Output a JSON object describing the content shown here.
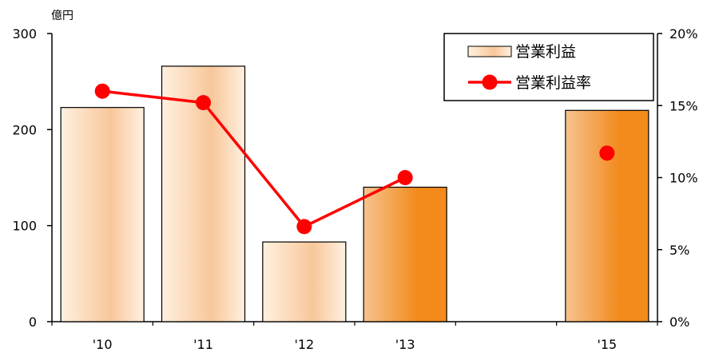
{
  "chart_data": {
    "type": "bar",
    "unit_label": "億円",
    "categories": [
      "'10",
      "'11",
      "'12",
      "'13",
      "'15"
    ],
    "series": [
      {
        "name": "営業利益",
        "type": "bar",
        "axis": "left",
        "values": [
          223,
          266,
          83,
          140,
          220
        ],
        "highlight": [
          false,
          false,
          false,
          true,
          true
        ]
      },
      {
        "name": "営業利益率",
        "type": "line",
        "axis": "right",
        "values": [
          16.0,
          15.2,
          6.6,
          10.0,
          11.7
        ],
        "connected_segments": [
          [
            0,
            3
          ]
        ],
        "marker": "circle"
      }
    ],
    "x_positions": [
      0,
      1,
      2,
      3,
      5
    ],
    "y_left": {
      "lim": [
        0,
        300
      ],
      "ticks": [
        0,
        100,
        200,
        300
      ],
      "tick_labels": [
        "0",
        "100",
        "200",
        "300"
      ]
    },
    "y_right": {
      "lim": [
        0,
        20
      ],
      "ticks": [
        0,
        5,
        10,
        15,
        20
      ],
      "tick_labels": [
        "0%",
        "5%",
        "10%",
        "15%",
        "20%"
      ]
    },
    "legend": {
      "position": "top-right"
    },
    "grid": false,
    "colors": {
      "bar_light_edge": "#FFF0E0",
      "bar_light_center": "#F8C79A",
      "bar_dark_edge": "#F7C38F",
      "bar_dark_center": "#F28A1C",
      "line": "#FF0000",
      "axis": "#000000"
    }
  }
}
